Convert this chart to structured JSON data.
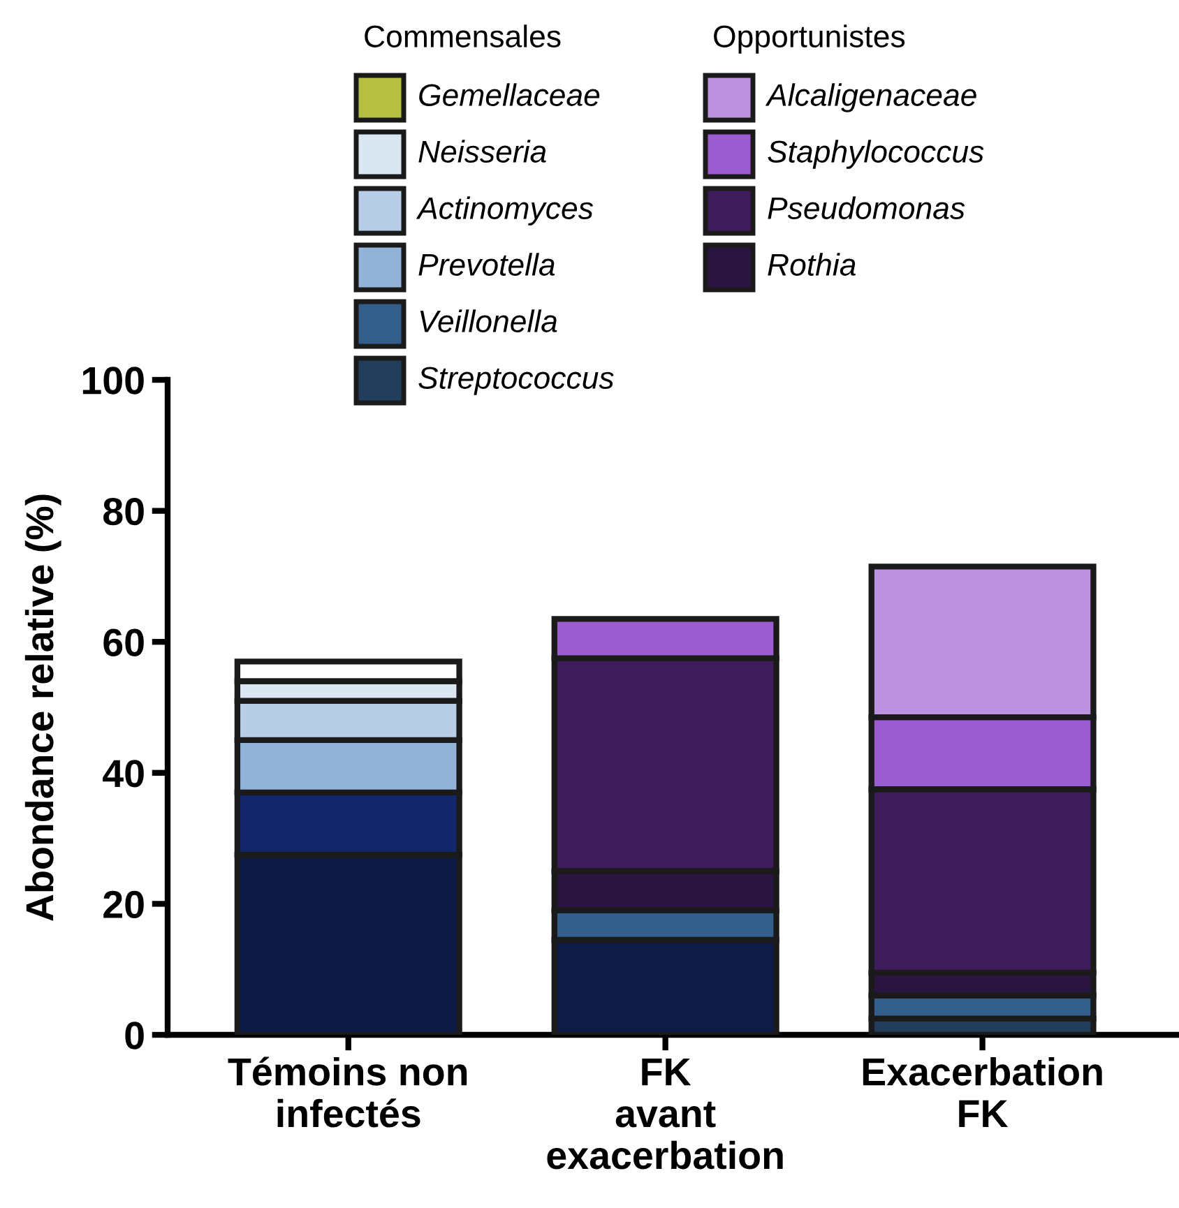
{
  "chart_data": {
    "type": "bar",
    "stacked": true,
    "ylabel": "Abondance relative (%)",
    "categories": [
      "Témoins non\ninfectés",
      "FK\navant\nexacerbation",
      "Exacerbation\nFK"
    ],
    "ylim": [
      0,
      100
    ],
    "yticks": [
      0,
      20,
      40,
      60,
      80,
      100
    ],
    "grid": false,
    "legend": "top",
    "annotations": [
      "Commensales",
      "Opportunistes"
    ],
    "series": [
      {
        "name": "Streptococcus",
        "color": "#223d5c",
        "colors": [
          "#0d1a45",
          "#0e1b46",
          "#223d5c"
        ],
        "values": [
          27.5,
          14.5,
          2.5
        ]
      },
      {
        "name": "Veillonella",
        "color": "#335e8c",
        "colors": [
          "#13266a",
          "#335e8c",
          "#335e8c"
        ],
        "values": [
          9.5,
          4.5,
          3.5
        ]
      },
      {
        "name": "Prevotella",
        "color": "#92b2d8",
        "values": [
          8,
          null,
          null
        ]
      },
      {
        "name": "Actinomyces",
        "color": "#b8cde6",
        "values": [
          6,
          null,
          null
        ]
      },
      {
        "name": "Neisseria",
        "color": "#dbe6f3",
        "values": [
          3,
          null,
          null
        ]
      },
      {
        "name": "Gemellaceae",
        "color": "#b6c040",
        "colors": [
          "#ffffff",
          "#b6c040",
          "#b6c040"
        ],
        "values": [
          3,
          null,
          null
        ]
      },
      {
        "name": "Rothia",
        "color": "#2a1440",
        "values": [
          null,
          6,
          3.5
        ]
      },
      {
        "name": "Pseudomonas",
        "color": "#3e1c5c",
        "values": [
          null,
          32.5,
          28
        ]
      },
      {
        "name": "Staphylococcus",
        "color": "#9a5ccf",
        "values": [
          null,
          6,
          11
        ]
      },
      {
        "name": "Alcaligenaceae",
        "color": "#bd93df",
        "values": [
          null,
          null,
          23
        ]
      }
    ]
  }
}
